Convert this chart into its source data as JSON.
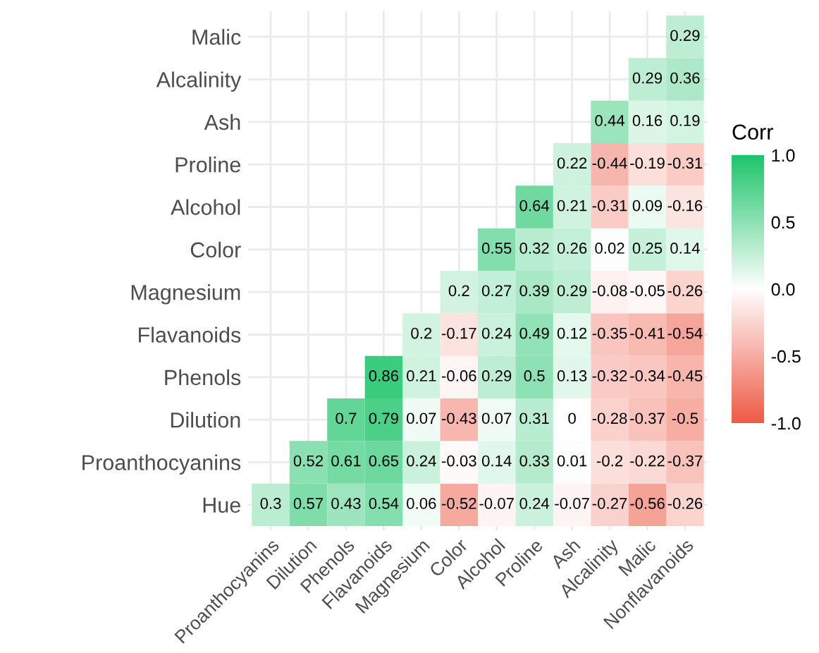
{
  "chart_data": {
    "type": "heatmap",
    "clabel": "Corr",
    "categories": [
      "Proanthocyanins",
      "Dilution",
      "Phenols",
      "Flavanoids",
      "Magnesium",
      "Color",
      "Alcohol",
      "Proline",
      "Ash",
      "Alcalinity",
      "Malic",
      "Nonflavanoids"
    ],
    "y_categories": [
      "Malic",
      "Alcalinity",
      "Ash",
      "Proline",
      "Alcohol",
      "Color",
      "Magnesium",
      "Flavanoids",
      "Phenols",
      "Dilution",
      "Proanthocyanins",
      "Hue"
    ],
    "cells": [
      [
        null,
        null,
        null,
        null,
        null,
        null,
        null,
        null,
        null,
        null,
        null,
        0.29
      ],
      [
        null,
        null,
        null,
        null,
        null,
        null,
        null,
        null,
        null,
        null,
        0.29,
        0.36
      ],
      [
        null,
        null,
        null,
        null,
        null,
        null,
        null,
        null,
        null,
        0.44,
        0.16,
        0.19
      ],
      [
        null,
        null,
        null,
        null,
        null,
        null,
        null,
        null,
        0.22,
        -0.44,
        -0.19,
        -0.31
      ],
      [
        null,
        null,
        null,
        null,
        null,
        null,
        null,
        0.64,
        0.21,
        -0.31,
        0.09,
        -0.16
      ],
      [
        null,
        null,
        null,
        null,
        null,
        null,
        0.55,
        0.32,
        0.26,
        0.02,
        0.25,
        0.14
      ],
      [
        null,
        null,
        null,
        null,
        null,
        0.2,
        0.27,
        0.39,
        0.29,
        -0.08,
        -0.05,
        -0.26
      ],
      [
        null,
        null,
        null,
        null,
        0.2,
        -0.17,
        0.24,
        0.49,
        0.12,
        -0.35,
        -0.41,
        -0.54
      ],
      [
        null,
        null,
        null,
        0.86,
        0.21,
        -0.06,
        0.29,
        0.5,
        0.13,
        -0.32,
        -0.34,
        -0.45
      ],
      [
        null,
        null,
        0.7,
        0.79,
        0.07,
        -0.43,
        0.07,
        0.31,
        0,
        -0.28,
        -0.37,
        -0.5
      ],
      [
        null,
        0.52,
        0.61,
        0.65,
        0.24,
        -0.03,
        0.14,
        0.33,
        0.01,
        -0.2,
        -0.22,
        -0.37
      ],
      [
        0.3,
        0.57,
        0.43,
        0.54,
        0.06,
        -0.52,
        -0.07,
        0.24,
        -0.07,
        -0.27,
        -0.56,
        -0.26
      ]
    ],
    "clim": [
      -1,
      1
    ],
    "cticks": [
      {
        "value": -1,
        "label": "-1.0"
      },
      {
        "value": -0.5,
        "label": "-0.5"
      },
      {
        "value": 0,
        "label": "0.0"
      },
      {
        "value": 0.5,
        "label": "0.5"
      },
      {
        "value": 1,
        "label": "1.0"
      }
    ],
    "data_labels": true,
    "grid": true
  }
}
